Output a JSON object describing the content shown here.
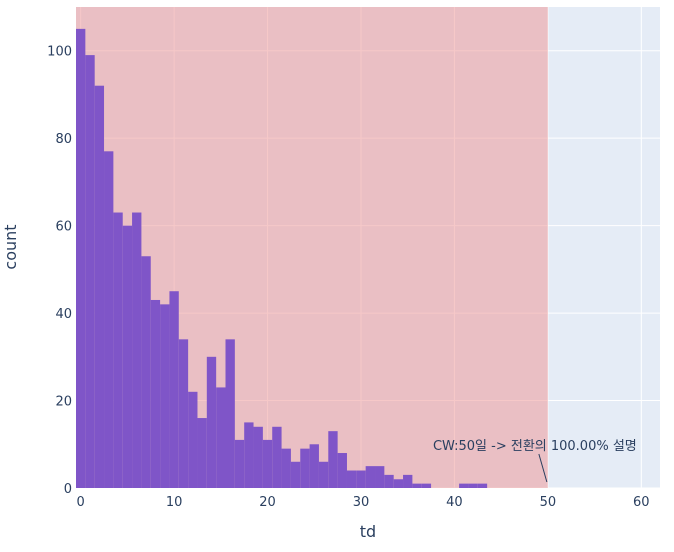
{
  "chart_data": {
    "type": "bar",
    "subtype": "histogram",
    "xlabel": "td",
    "ylabel": "count",
    "xlim": [
      -0.5,
      62
    ],
    "ylim": [
      0,
      110
    ],
    "x_ticks": [
      0,
      10,
      20,
      30,
      40,
      50,
      60
    ],
    "y_ticks": [
      0,
      20,
      40,
      60,
      80,
      100
    ],
    "bin_width": 1,
    "bin_starts": [
      -0.5,
      0.5,
      1.5,
      2.5,
      3.5,
      4.5,
      5.5,
      6.5,
      7.5,
      8.5,
      9.5,
      10.5,
      11.5,
      12.5,
      13.5,
      14.5,
      15.5,
      16.5,
      17.5,
      18.5,
      19.5,
      20.5,
      21.5,
      22.5,
      23.5,
      24.5,
      25.5,
      26.5,
      27.5,
      28.5,
      29.5,
      30.5,
      31.5,
      32.5,
      33.5,
      34.5,
      35.5,
      36.5,
      37.5,
      38.5,
      39.5,
      40.5,
      41.5,
      42.5
    ],
    "values": [
      105,
      99,
      92,
      77,
      63,
      60,
      63,
      53,
      43,
      42,
      45,
      34,
      22,
      16,
      30,
      23,
      34,
      11,
      15,
      14,
      11,
      14,
      9,
      6,
      9,
      10,
      6,
      13,
      8,
      4,
      4,
      5,
      5,
      3,
      2,
      3,
      1,
      1,
      0,
      0,
      0,
      1,
      1,
      1
    ],
    "bar_color": "#7f55c8",
    "shaded_region": {
      "x0": -0.5,
      "x1": 50,
      "color": "#ef9a9a"
    },
    "plot_bg": "#e5ecf6",
    "grid": true,
    "annotation": {
      "text": "CW:50일 -> 전환의 100.00% 설명",
      "x": 50,
      "y": 0
    }
  }
}
